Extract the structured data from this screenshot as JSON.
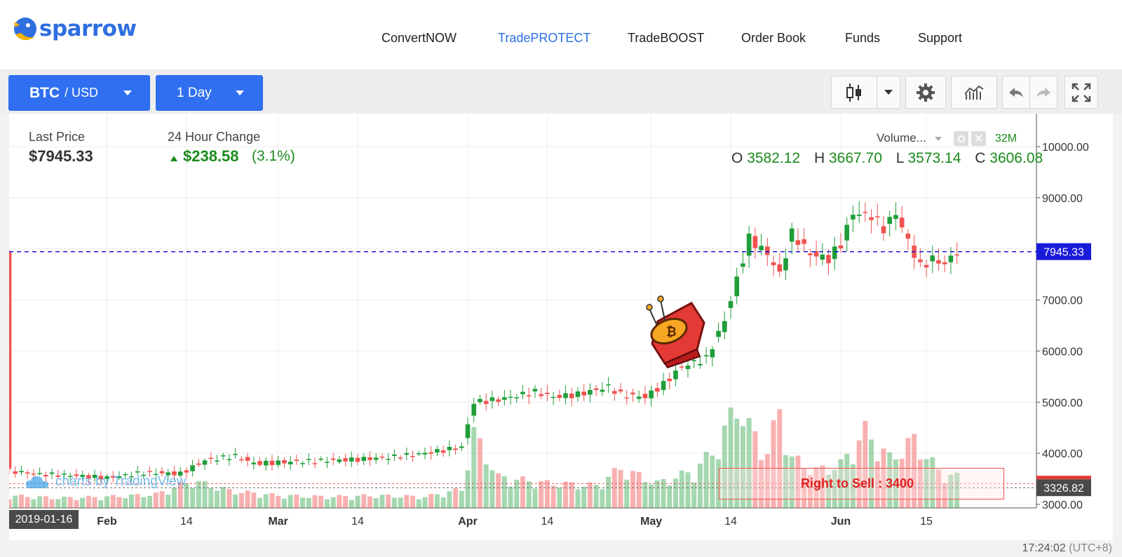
{
  "header": {
    "logo_text": "sparrow",
    "nav": [
      {
        "label": "ConvertNOW",
        "active": false
      },
      {
        "label": "TradePROTECT",
        "active": true
      },
      {
        "label": "TradeBOOST",
        "active": false
      },
      {
        "label": "Order Book",
        "active": false
      },
      {
        "label": "Funds",
        "active": false
      },
      {
        "label": "Support",
        "active": false
      }
    ]
  },
  "toolbar": {
    "pair_base": "BTC",
    "pair_quote": "/ USD",
    "interval": "1 Day",
    "icons": [
      "candlestick-icon",
      "chevron-down-icon",
      "gear-icon",
      "indicators-icon",
      "undo-icon",
      "redo-icon",
      "fullscreen-icon"
    ]
  },
  "info": {
    "last_price_label": "Last Price",
    "last_price_value": "$7945.33",
    "change_label": "24 Hour Change",
    "change_value": "$238.58",
    "change_pct": "(3.1%)",
    "volume_label": "Volume...",
    "volume_value": "32M",
    "ohlc": {
      "o_label": "O",
      "o": "3582.12",
      "h_label": "H",
      "h": "3667.70",
      "l_label": "L",
      "l": "3573.14",
      "c_label": "C",
      "c": "3606.08"
    }
  },
  "watermark": "charts by TradingView",
  "current_date_badge": "2019-01-16",
  "time_readout": "17:24:02",
  "timezone": "(UTC+8)",
  "colors": {
    "up": "#1f9e3a",
    "down": "#ef5350",
    "accent": "#2f6ff0",
    "price_line": "#1a1adb"
  },
  "chart_data": {
    "type": "candlestick",
    "y_range": [
      3000,
      10000
    ],
    "y_ticks": [
      "10000.00",
      "9000.00",
      "8000.00",
      "7000.00",
      "6000.00",
      "5000.00",
      "4000.00",
      "3000.00"
    ],
    "y_tick_values": [
      10000,
      9000,
      8000,
      7000,
      6000,
      5000,
      4000,
      3000
    ],
    "x_ticks": [
      {
        "label": "Feb",
        "day": 16
      },
      {
        "label": "14",
        "day": 29
      },
      {
        "label": "Mar",
        "day": 44
      },
      {
        "label": "14",
        "day": 57
      },
      {
        "label": "Apr",
        "day": 75
      },
      {
        "label": "14",
        "day": 88
      },
      {
        "label": "May",
        "day": 105
      },
      {
        "label": "14",
        "day": 118
      },
      {
        "label": "Jun",
        "day": 136
      },
      {
        "label": "15",
        "day": 150
      }
    ],
    "x_range_days": [
      0,
      168
    ],
    "start_date": "2019-01-16",
    "last_price": 7945.33,
    "last_price_label": "7945.33",
    "protect_level": 3326.82,
    "protect_level_label": "3326.82",
    "protect_text": "Right to Sell : 3400",
    "close_samples": [
      [
        0,
        3650
      ],
      [
        5,
        3590
      ],
      [
        10,
        3570
      ],
      [
        16,
        3520
      ],
      [
        22,
        3620
      ],
      [
        28,
        3600
      ],
      [
        32,
        3860
      ],
      [
        37,
        3950
      ],
      [
        40,
        3800
      ],
      [
        44,
        3820
      ],
      [
        50,
        3850
      ],
      [
        57,
        3880
      ],
      [
        62,
        3920
      ],
      [
        68,
        4000
      ],
      [
        74,
        4120
      ],
      [
        76,
        5000
      ],
      [
        80,
        5050
      ],
      [
        86,
        5200
      ],
      [
        89,
        5100
      ],
      [
        93,
        5150
      ],
      [
        98,
        5300
      ],
      [
        100,
        5150
      ],
      [
        104,
        5100
      ],
      [
        107,
        5350
      ],
      [
        110,
        5700
      ],
      [
        114,
        5850
      ],
      [
        117,
        6600
      ],
      [
        119,
        7400
      ],
      [
        121,
        8200
      ],
      [
        124,
        7900
      ],
      [
        126,
        7500
      ],
      [
        128,
        8300
      ],
      [
        131,
        7900
      ],
      [
        134,
        7800
      ],
      [
        136,
        8100
      ],
      [
        138,
        8700
      ],
      [
        141,
        8650
      ],
      [
        143,
        8400
      ],
      [
        145,
        8700
      ],
      [
        147,
        8150
      ],
      [
        149,
        7650
      ],
      [
        151,
        7800
      ],
      [
        153,
        7700
      ],
      [
        155,
        7950
      ]
    ],
    "volume_samples": [
      [
        0,
        0.1
      ],
      [
        8,
        0.08
      ],
      [
        16,
        0.09
      ],
      [
        24,
        0.11
      ],
      [
        30,
        0.22
      ],
      [
        36,
        0.14
      ],
      [
        44,
        0.1
      ],
      [
        52,
        0.09
      ],
      [
        60,
        0.1
      ],
      [
        68,
        0.09
      ],
      [
        74,
        0.15
      ],
      [
        76,
        0.6
      ],
      [
        80,
        0.25
      ],
      [
        88,
        0.2
      ],
      [
        96,
        0.18
      ],
      [
        100,
        0.32
      ],
      [
        106,
        0.2
      ],
      [
        112,
        0.3
      ],
      [
        116,
        0.5
      ],
      [
        119,
        0.85
      ],
      [
        121,
        0.65
      ],
      [
        124,
        0.45
      ],
      [
        126,
        0.8
      ],
      [
        128,
        0.4
      ],
      [
        132,
        0.3
      ],
      [
        136,
        0.35
      ],
      [
        140,
        0.62
      ],
      [
        144,
        0.4
      ],
      [
        148,
        0.55
      ],
      [
        152,
        0.3
      ],
      [
        155,
        0.25
      ]
    ]
  }
}
